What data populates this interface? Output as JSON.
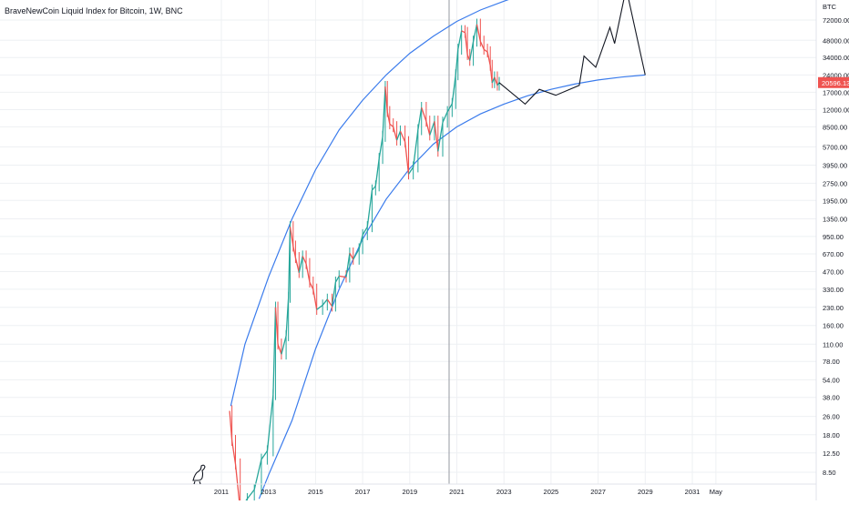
{
  "header": {
    "title": "BraveNewCoin Liquid Index for Bitcoin, 1W, BNC"
  },
  "price_scale": {
    "currency": "BTC",
    "last_price": "20596.13"
  },
  "colors": {
    "channel": "#3a7bec",
    "projection": "#131722",
    "up_candle": "#26a69a",
    "down_candle": "#ef5350",
    "grid": "#eef0f3",
    "last_price_badge": "#ef5350",
    "vertical_marker": "#9598a1"
  },
  "chart_data": {
    "type": "candlestick",
    "title": "BraveNewCoin Liquid Index for Bitcoin, 1W, BNC",
    "scale": "log",
    "grid": true,
    "x_ticks": [
      "2011",
      "2013",
      "2015",
      "2017",
      "2019",
      "2021",
      "2023",
      "2025",
      "2027",
      "2029",
      "2031",
      "May"
    ],
    "y_ticks": [
      "72000.00",
      "48000.00",
      "34000.00",
      "24000.00",
      "17000.00",
      "12000.00",
      "8500.00",
      "5700.00",
      "3950.00",
      "2750.00",
      "1950.00",
      "1350.00",
      "950.00",
      "670.00",
      "470.00",
      "330.00",
      "230.00",
      "160.00",
      "110.00",
      "78.00",
      "54.00",
      "38.00",
      "26.00",
      "18.00",
      "12.50",
      "8.50"
    ],
    "price_series": [
      {
        "t": 2011.35,
        "v": 29
      },
      {
        "t": 2011.45,
        "v": 16
      },
      {
        "t": 2011.6,
        "v": 10
      },
      {
        "t": 2011.8,
        "v": 4
      },
      {
        "t": 2012.1,
        "v": 5
      },
      {
        "t": 2012.4,
        "v": 6
      },
      {
        "t": 2012.7,
        "v": 11
      },
      {
        "t": 2012.95,
        "v": 13
      },
      {
        "t": 2013.2,
        "v": 40
      },
      {
        "t": 2013.3,
        "v": 230
      },
      {
        "t": 2013.4,
        "v": 110
      },
      {
        "t": 2013.55,
        "v": 90
      },
      {
        "t": 2013.75,
        "v": 130
      },
      {
        "t": 2013.85,
        "v": 280
      },
      {
        "t": 2013.92,
        "v": 1150
      },
      {
        "t": 2014.05,
        "v": 780
      },
      {
        "t": 2014.15,
        "v": 620
      },
      {
        "t": 2014.3,
        "v": 460
      },
      {
        "t": 2014.45,
        "v": 640
      },
      {
        "t": 2014.6,
        "v": 550
      },
      {
        "t": 2014.75,
        "v": 380
      },
      {
        "t": 2014.9,
        "v": 330
      },
      {
        "t": 2015.05,
        "v": 220
      },
      {
        "t": 2015.3,
        "v": 240
      },
      {
        "t": 2015.5,
        "v": 270
      },
      {
        "t": 2015.7,
        "v": 235
      },
      {
        "t": 2015.85,
        "v": 380
      },
      {
        "t": 2016.0,
        "v": 430
      },
      {
        "t": 2016.3,
        "v": 420
      },
      {
        "t": 2016.45,
        "v": 680
      },
      {
        "t": 2016.6,
        "v": 600
      },
      {
        "t": 2016.85,
        "v": 740
      },
      {
        "t": 2017.0,
        "v": 980
      },
      {
        "t": 2017.2,
        "v": 1150
      },
      {
        "t": 2017.4,
        "v": 2400
      },
      {
        "t": 2017.55,
        "v": 2600
      },
      {
        "t": 2017.7,
        "v": 4500
      },
      {
        "t": 2017.85,
        "v": 7000
      },
      {
        "t": 2017.96,
        "v": 19000
      },
      {
        "t": 2018.05,
        "v": 11500
      },
      {
        "t": 2018.15,
        "v": 9000
      },
      {
        "t": 2018.3,
        "v": 8500
      },
      {
        "t": 2018.45,
        "v": 6500
      },
      {
        "t": 2018.6,
        "v": 7800
      },
      {
        "t": 2018.8,
        "v": 6300
      },
      {
        "t": 2018.95,
        "v": 3300
      },
      {
        "t": 2019.15,
        "v": 3800
      },
      {
        "t": 2019.35,
        "v": 8000
      },
      {
        "t": 2019.5,
        "v": 12500
      },
      {
        "t": 2019.7,
        "v": 9500
      },
      {
        "t": 2019.85,
        "v": 7200
      },
      {
        "t": 2020.05,
        "v": 9500
      },
      {
        "t": 2020.2,
        "v": 5200
      },
      {
        "t": 2020.4,
        "v": 9300
      },
      {
        "t": 2020.6,
        "v": 11500
      },
      {
        "t": 2020.8,
        "v": 13500
      },
      {
        "t": 2020.95,
        "v": 24000
      },
      {
        "t": 2021.05,
        "v": 40000
      },
      {
        "t": 2021.2,
        "v": 58000
      },
      {
        "t": 2021.35,
        "v": 56000
      },
      {
        "t": 2021.45,
        "v": 36000
      },
      {
        "t": 2021.55,
        "v": 32000
      },
      {
        "t": 2021.7,
        "v": 47000
      },
      {
        "t": 2021.85,
        "v": 66000
      },
      {
        "t": 2022.0,
        "v": 47000
      },
      {
        "t": 2022.15,
        "v": 40000
      },
      {
        "t": 2022.3,
        "v": 38000
      },
      {
        "t": 2022.42,
        "v": 29000
      },
      {
        "t": 2022.5,
        "v": 20500
      },
      {
        "t": 2022.6,
        "v": 23000
      },
      {
        "t": 2022.72,
        "v": 19500
      },
      {
        "t": 2022.8,
        "v": 20596
      }
    ],
    "channel_upper": [
      {
        "t": 2011.4,
        "v": 32
      },
      {
        "t": 2012.0,
        "v": 110
      },
      {
        "t": 2013.0,
        "v": 420
      },
      {
        "t": 2014.0,
        "v": 1350
      },
      {
        "t": 2015.0,
        "v": 3600
      },
      {
        "t": 2016.0,
        "v": 8000
      },
      {
        "t": 2017.0,
        "v": 14500
      },
      {
        "t": 2018.0,
        "v": 24000
      },
      {
        "t": 2019.0,
        "v": 37000
      },
      {
        "t": 2020.0,
        "v": 52000
      },
      {
        "t": 2021.0,
        "v": 70000
      },
      {
        "t": 2022.0,
        "v": 88000
      },
      {
        "t": 2023.0,
        "v": 105000
      },
      {
        "t": 2023.6,
        "v": 116000
      }
    ],
    "channel_lower": [
      {
        "t": 2012.6,
        "v": 5
      },
      {
        "t": 2013.0,
        "v": 8
      },
      {
        "t": 2014.0,
        "v": 24
      },
      {
        "t": 2015.0,
        "v": 100
      },
      {
        "t": 2016.0,
        "v": 330
      },
      {
        "t": 2017.0,
        "v": 900
      },
      {
        "t": 2018.0,
        "v": 2000
      },
      {
        "t": 2019.0,
        "v": 3700
      },
      {
        "t": 2020.0,
        "v": 6000
      },
      {
        "t": 2021.0,
        "v": 8500
      },
      {
        "t": 2022.0,
        "v": 11000
      },
      {
        "t": 2023.0,
        "v": 13400
      },
      {
        "t": 2024.0,
        "v": 15800
      },
      {
        "t": 2025.0,
        "v": 18000
      },
      {
        "t": 2026.0,
        "v": 20000
      },
      {
        "t": 2027.0,
        "v": 21700
      },
      {
        "t": 2028.0,
        "v": 23000
      },
      {
        "t": 2029.0,
        "v": 24000
      }
    ],
    "projection": [
      {
        "t": 2022.8,
        "v": 20596
      },
      {
        "t": 2023.9,
        "v": 13400
      },
      {
        "t": 2024.5,
        "v": 18000
      },
      {
        "t": 2025.2,
        "v": 16000
      },
      {
        "t": 2026.2,
        "v": 19500
      },
      {
        "t": 2026.4,
        "v": 35000
      },
      {
        "t": 2026.9,
        "v": 28000
      },
      {
        "t": 2027.5,
        "v": 62000
      },
      {
        "t": 2027.7,
        "v": 45000
      },
      {
        "t": 2028.1,
        "v": 110000
      },
      {
        "t": 2028.25,
        "v": 120000
      },
      {
        "t": 2029.0,
        "v": 24000
      }
    ]
  }
}
